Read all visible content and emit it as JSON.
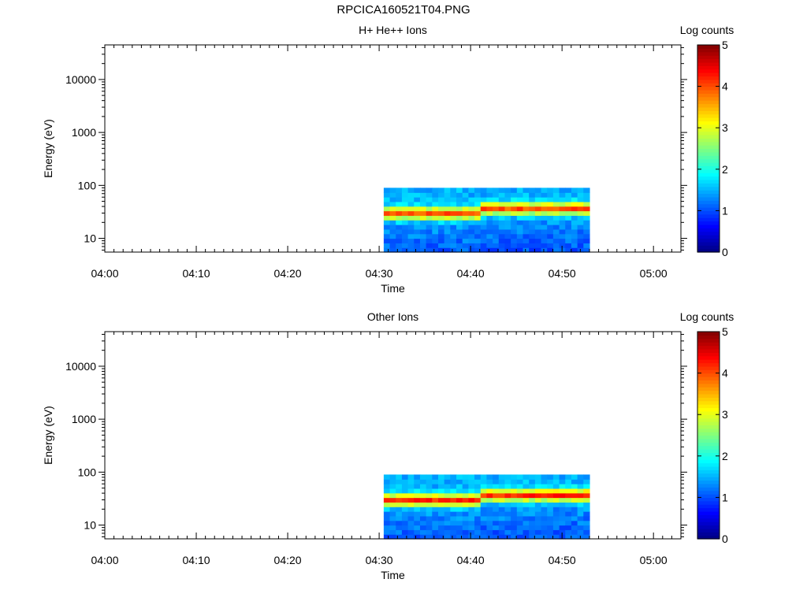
{
  "figure": {
    "title": "RPCICA160521T04.PNG"
  },
  "colorbar": {
    "label": "Log counts",
    "ticks": [
      "0",
      "1",
      "2",
      "3",
      "4",
      "5"
    ],
    "range": [
      0,
      5
    ],
    "colormap": "jet"
  },
  "chart_data": [
    {
      "type": "heatmap",
      "title": "H+ He++ Ions",
      "xlabel": "Time",
      "ylabel": "Energy (eV)",
      "yscale": "log",
      "ylim": [
        5.5,
        45000
      ],
      "xlim": [
        "04:00",
        "05:03"
      ],
      "x_ticks": [
        "04:00",
        "04:10",
        "04:20",
        "04:30",
        "04:40",
        "04:50",
        "05:00"
      ],
      "y_ticks": [
        "10",
        "100",
        "1000",
        "10000"
      ],
      "data_time_range": [
        "04:30.5",
        "04:53"
      ],
      "data_energy_range_eV": [
        5.5,
        90
      ],
      "peak_energy_eV": {
        "before_04:41": 30,
        "after_04:41": 37
      },
      "peak_log_counts": 4.0,
      "background_log_counts": 1.5
    },
    {
      "type": "heatmap",
      "title": "Other Ions",
      "xlabel": "Time",
      "ylabel": "Energy (eV)",
      "yscale": "log",
      "ylim": [
        5.5,
        45000
      ],
      "xlim": [
        "04:00",
        "05:03"
      ],
      "x_ticks": [
        "04:00",
        "04:10",
        "04:20",
        "04:30",
        "04:40",
        "04:50",
        "05:00"
      ],
      "y_ticks": [
        "10",
        "100",
        "1000",
        "10000"
      ],
      "data_time_range": [
        "04:30.5",
        "04:53"
      ],
      "data_energy_range_eV": [
        5.5,
        90
      ],
      "peak_energy_eV": {
        "before_04:41": 30,
        "after_04:41": 37
      },
      "peak_log_counts": 4.2,
      "background_log_counts": 1.5
    }
  ]
}
